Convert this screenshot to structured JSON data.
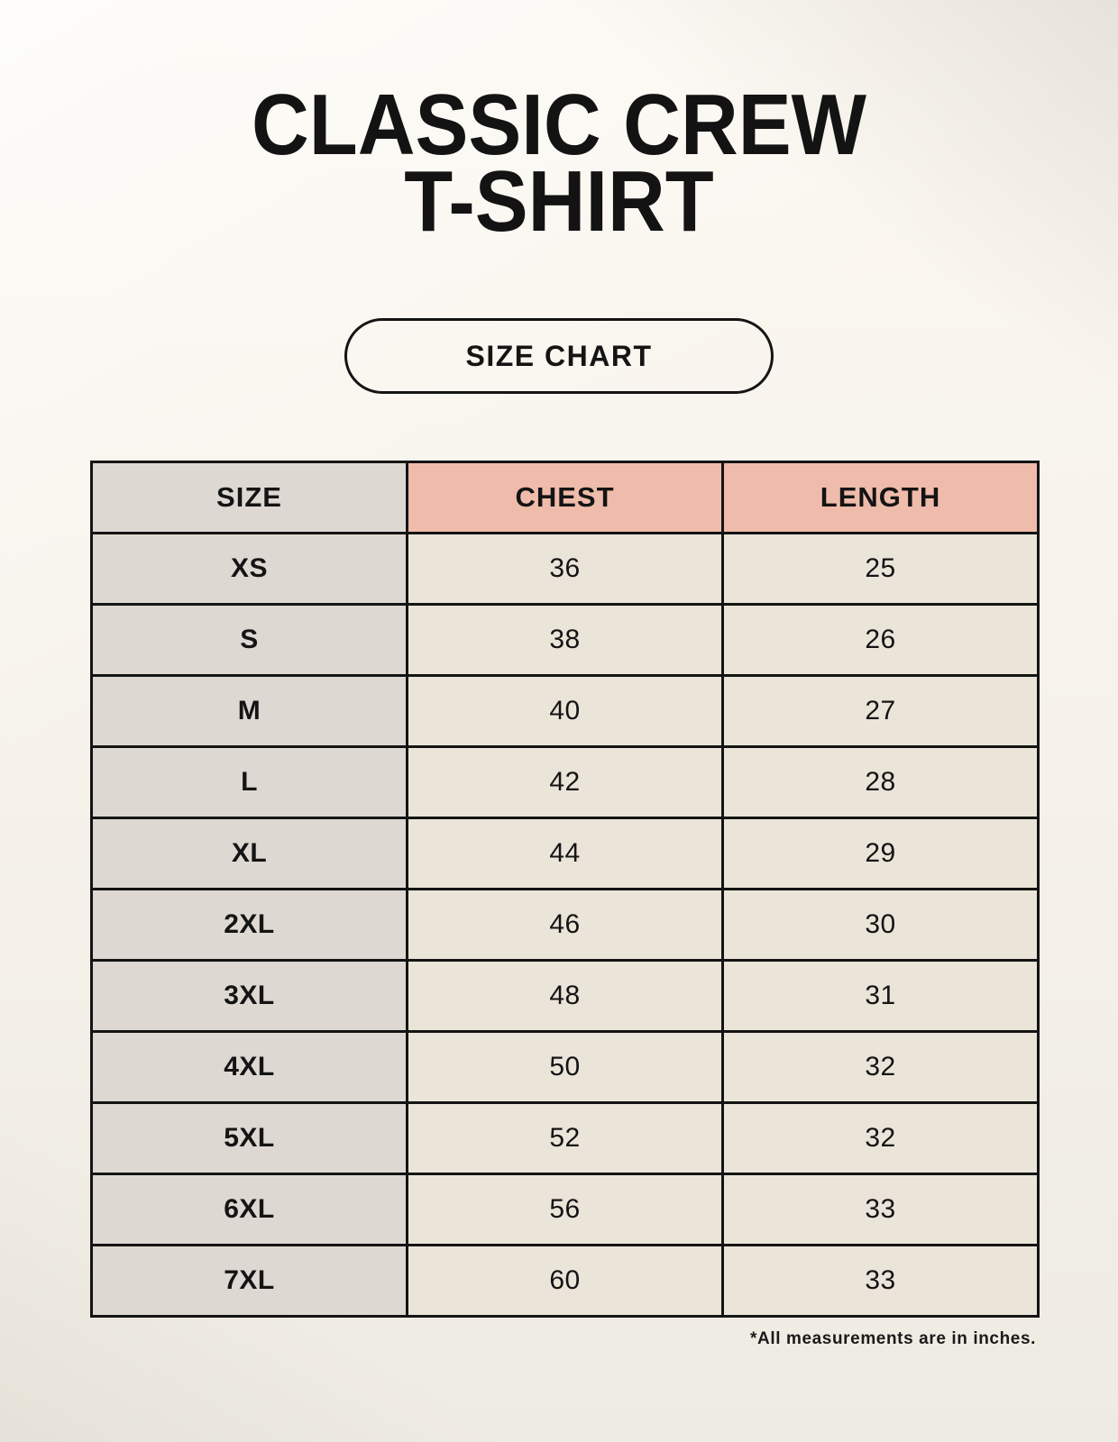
{
  "title": {
    "lines": [
      "CLASSIC CREW",
      "T-SHIRT"
    ]
  },
  "size_chart_button": {
    "label": "SIZE CHART"
  },
  "chart_data": {
    "type": "table",
    "title": "CLASSIC CREW T-SHIRT",
    "columns": [
      "SIZE",
      "CHEST",
      "LENGTH"
    ],
    "rows": [
      [
        "XS",
        "36",
        "25"
      ],
      [
        "S",
        "38",
        "26"
      ],
      [
        "M",
        "40",
        "27"
      ],
      [
        "L",
        "42",
        "28"
      ],
      [
        "XL",
        "44",
        "29"
      ],
      [
        "2XL",
        "46",
        "30"
      ],
      [
        "3XL",
        "48",
        "31"
      ],
      [
        "4XL",
        "50",
        "32"
      ],
      [
        "5XL",
        "52",
        "32"
      ],
      [
        "6XL",
        "56",
        "33"
      ],
      [
        "7XL",
        "60",
        "33"
      ]
    ],
    "footnote": "*All measurements are in inches.",
    "units": "inches"
  },
  "colors": {
    "background": "#f7f3ec",
    "header_accent": "#efbbaa",
    "size_column": "#ded8d2",
    "value_cell": "#eae4d9",
    "border": "#141414",
    "text": "#141414"
  }
}
